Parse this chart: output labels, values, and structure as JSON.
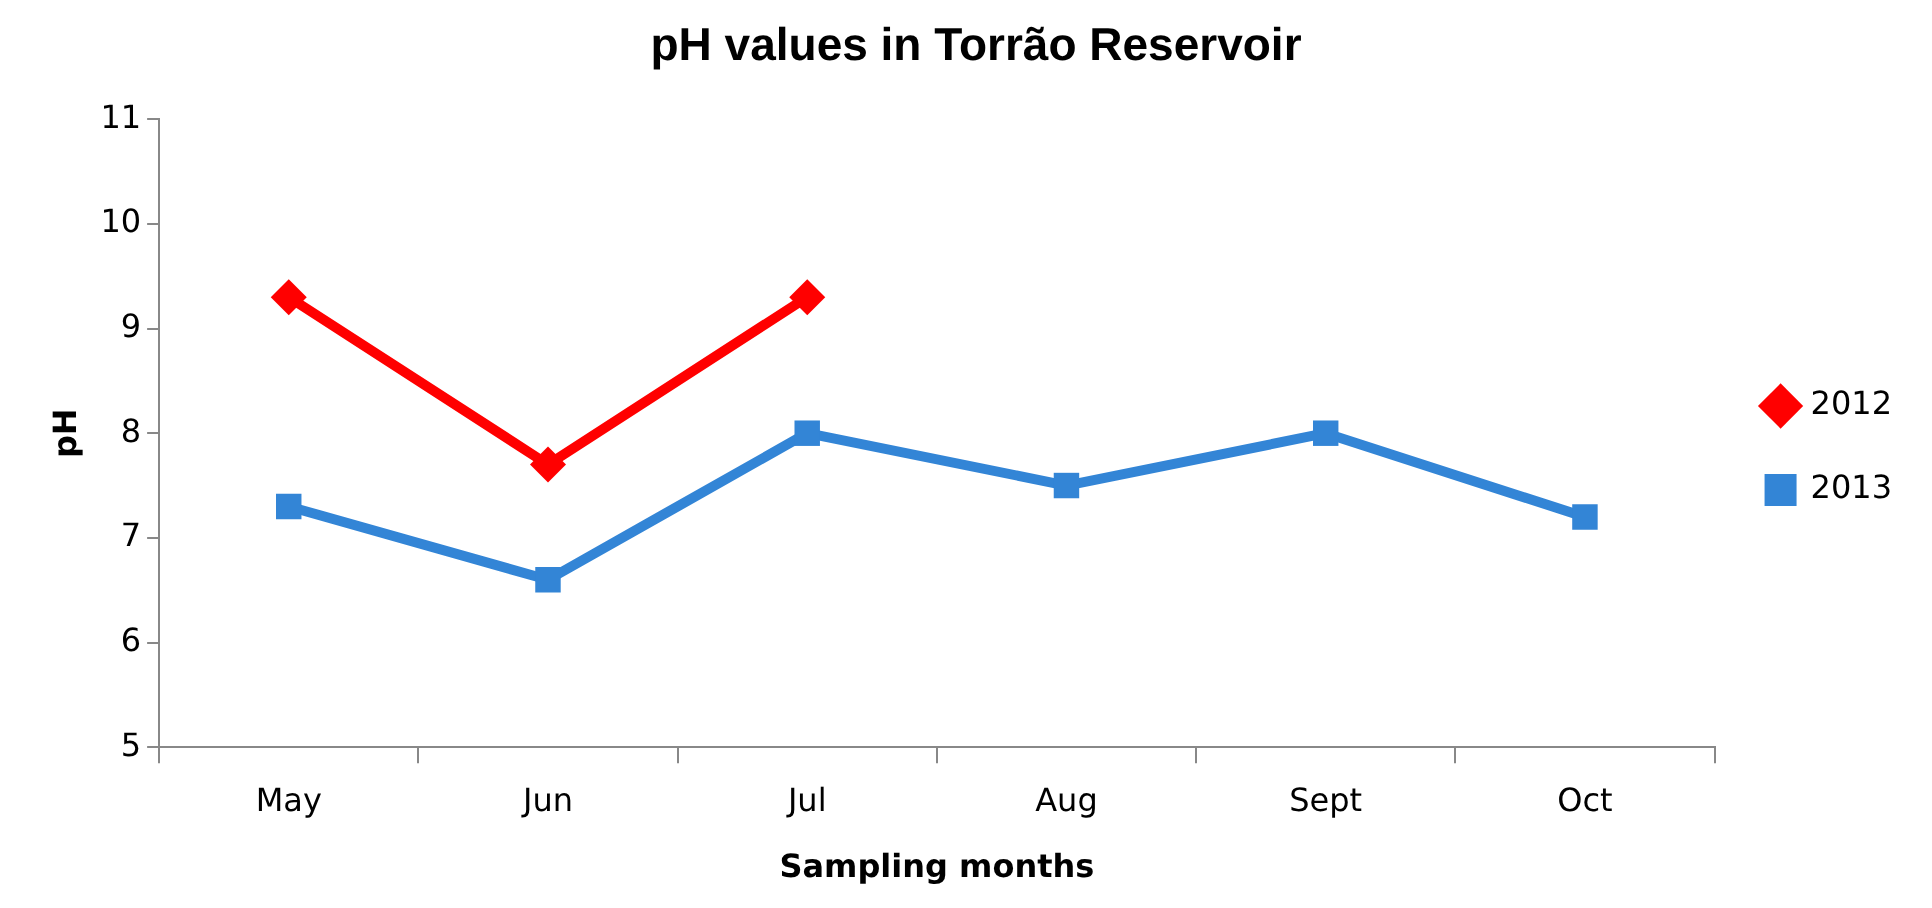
{
  "chart_data": {
    "type": "line",
    "title": "pH values in Torrão Reservoir",
    "xlabel": "Sampling months",
    "ylabel": "pH",
    "categories": [
      "May",
      "Jun",
      "Jul",
      "Aug",
      "Sept",
      "Oct"
    ],
    "series": [
      {
        "name": "2012",
        "color": "#ff0000",
        "marker": "diamond",
        "values": [
          9.3,
          7.7,
          9.3,
          null,
          null,
          null
        ]
      },
      {
        "name": "2013",
        "color": "#3385d6",
        "marker": "square",
        "values": [
          7.3,
          6.6,
          8.0,
          7.5,
          8.0,
          7.2
        ]
      }
    ],
    "ylim": [
      5,
      11
    ],
    "yticks": [
      5,
      6,
      7,
      8,
      9,
      10,
      11
    ],
    "grid": false,
    "legend": "right",
    "line_style": "solid"
  }
}
